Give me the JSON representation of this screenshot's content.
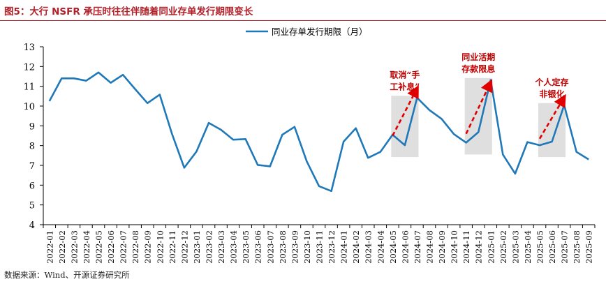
{
  "header": {
    "title": "图5：大行 NSFR 承压时往往伴随着同业存单发行期限变长"
  },
  "footer": {
    "source": "数据来源：Wind、开源证券研究所"
  },
  "chart_data": {
    "type": "line",
    "title": "图5：大行 NSFR 承压时往往伴随着同业存单发行期限变长",
    "xlabel": "",
    "ylabel": "",
    "ylim": [
      4,
      13
    ],
    "yticks": [
      4,
      5,
      6,
      7,
      8,
      9,
      10,
      11,
      12,
      13
    ],
    "legend_position": "top-center",
    "line_color": "#1f78b8",
    "categories": [
      "2022-01",
      "2022-02",
      "2022-03",
      "2022-04",
      "2022-05",
      "2022-06",
      "2022-07",
      "2022-08",
      "2022-09",
      "2022-10",
      "2022-11",
      "2022-12",
      "2023-01",
      "2023-02",
      "2023-03",
      "2023-04",
      "2023-05",
      "2023-06",
      "2023-07",
      "2023-08",
      "2023-09",
      "2023-10",
      "2023-11",
      "2023-12",
      "2024-01",
      "2024-02",
      "2024-03",
      "2024-04",
      "2024-05",
      "2024-06",
      "2024-07",
      "2024-08",
      "2024-09",
      "2024-10",
      "2024-11",
      "2024-12",
      "2025-01",
      "2025-02",
      "2025-03",
      "2025-04",
      "2025-05",
      "2025-06",
      "2025-07",
      "2025-08",
      "2025-09"
    ],
    "series": [
      {
        "name": "同业存单发行期限（月）",
        "values": [
          10.25,
          11.4,
          11.4,
          11.28,
          11.7,
          11.18,
          11.58,
          10.85,
          10.15,
          10.58,
          8.6,
          6.88,
          7.7,
          9.15,
          8.8,
          8.3,
          8.33,
          7.02,
          6.95,
          8.55,
          8.95,
          7.2,
          5.95,
          5.7,
          8.2,
          8.88,
          7.38,
          7.68,
          8.55,
          8.02,
          10.42,
          9.8,
          9.35,
          8.58,
          8.15,
          8.68,
          11.32,
          7.55,
          6.58,
          8.18,
          8.02,
          8.2,
          10.05,
          7.68,
          7.3
        ]
      }
    ],
    "annotations": [
      {
        "label_lines": [
          "取消“手",
          "工补息”"
        ],
        "shaded_range": [
          "2024-05",
          "2024-07"
        ],
        "arrow_from": [
          "2024-05",
          8.5
        ],
        "arrow_to": [
          "2024-07",
          10.9
        ]
      },
      {
        "label_lines": [
          "同业活期",
          "存款限息"
        ],
        "shaded_range": [
          "2024-11",
          "2025-01"
        ],
        "arrow_from": [
          "2024-11",
          8.6
        ],
        "arrow_to": [
          "2025-01",
          11.2
        ]
      },
      {
        "label_lines": [
          "个人定存",
          "非银化"
        ],
        "shaded_range": [
          "2025-05",
          "2025-07"
        ],
        "arrow_from": [
          "2025-05",
          8.35
        ],
        "arrow_to": [
          "2025-07",
          10.45
        ]
      }
    ]
  }
}
